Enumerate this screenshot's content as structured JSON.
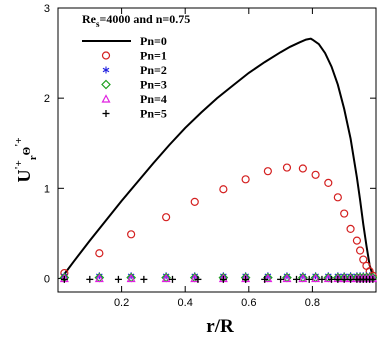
{
  "chart_data": {
    "type": "line",
    "annotation": {
      "main": "Re",
      "sub": "s",
      "rest": "=4000 and n=0.75"
    },
    "xlabel": "r/R",
    "ylabel": {
      "base": "U",
      "sup": "'+",
      "sub": "r",
      "theta": "Θ",
      "theta_sup": "'+"
    },
    "xlim": [
      0,
      1
    ],
    "ylim": [
      -0.15,
      3
    ],
    "xticks": [
      0.2,
      0.4,
      0.6,
      0.8
    ],
    "xtick_labels": [
      "0.2",
      "0.4",
      "0.6",
      "0.8"
    ],
    "yticks": [
      0,
      1,
      2,
      3
    ],
    "ytick_labels": [
      "0",
      "1",
      "2",
      "3"
    ],
    "grid": false,
    "legend_position": "top-left",
    "series": [
      {
        "name": "Pn=0",
        "style": "line",
        "color": "#000000",
        "x": [
          0.02,
          0.05,
          0.1,
          0.15,
          0.2,
          0.25,
          0.3,
          0.35,
          0.4,
          0.45,
          0.5,
          0.55,
          0.6,
          0.65,
          0.7,
          0.73,
          0.76,
          0.78,
          0.795,
          0.8,
          0.82,
          0.84,
          0.86,
          0.88,
          0.9,
          0.92,
          0.94,
          0.95,
          0.96,
          0.97,
          0.98,
          0.99,
          0.995
        ],
        "y": [
          0.05,
          0.19,
          0.42,
          0.64,
          0.86,
          1.07,
          1.28,
          1.48,
          1.67,
          1.84,
          2.0,
          2.14,
          2.28,
          2.4,
          2.51,
          2.57,
          2.62,
          2.65,
          2.66,
          2.65,
          2.6,
          2.5,
          2.35,
          2.15,
          1.88,
          1.55,
          1.12,
          0.87,
          0.6,
          0.36,
          0.15,
          0.03,
          0.0
        ]
      },
      {
        "name": "Pn=1",
        "style": "marker",
        "marker": "circle",
        "color": "#d42020",
        "x": [
          0.02,
          0.13,
          0.23,
          0.34,
          0.43,
          0.52,
          0.59,
          0.66,
          0.72,
          0.77,
          0.81,
          0.85,
          0.88,
          0.9,
          0.92,
          0.94,
          0.95,
          0.96,
          0.97,
          0.98,
          0.99
        ],
        "y": [
          0.06,
          0.28,
          0.49,
          0.68,
          0.85,
          0.99,
          1.1,
          1.19,
          1.23,
          1.22,
          1.15,
          1.06,
          0.9,
          0.72,
          0.55,
          0.42,
          0.31,
          0.21,
          0.14,
          0.08,
          0.03
        ]
      },
      {
        "name": "Pn=2",
        "style": "marker",
        "marker": "star",
        "color": "#2020e0",
        "x": [
          0.02,
          0.13,
          0.23,
          0.34,
          0.43,
          0.52,
          0.59,
          0.66,
          0.72,
          0.77,
          0.81,
          0.85,
          0.88,
          0.9,
          0.92,
          0.94,
          0.95,
          0.96,
          0.97,
          0.98,
          0.99
        ],
        "y": [
          0.03,
          0.03,
          0.03,
          0.03,
          0.03,
          0.03,
          0.03,
          0.03,
          0.03,
          0.03,
          0.03,
          0.03,
          0.03,
          0.03,
          0.03,
          0.03,
          0.03,
          0.03,
          0.03,
          0.03,
          0.02
        ]
      },
      {
        "name": "Pn=3",
        "style": "marker",
        "marker": "diamond",
        "color": "#20a020",
        "x": [
          0.02,
          0.13,
          0.23,
          0.34,
          0.43,
          0.52,
          0.59,
          0.66,
          0.72,
          0.77,
          0.81,
          0.85,
          0.88,
          0.9,
          0.92,
          0.94,
          0.95,
          0.96,
          0.97,
          0.98,
          0.99
        ],
        "y": [
          0.01,
          0.01,
          0.01,
          0.01,
          0.01,
          0.01,
          0.01,
          0.01,
          0.01,
          0.01,
          0.01,
          0.01,
          0.01,
          0.01,
          0.01,
          0.01,
          0.01,
          0.01,
          0.01,
          0.01,
          0.01
        ]
      },
      {
        "name": "Pn=4",
        "style": "marker",
        "marker": "triangle",
        "color": "#e020e0",
        "x": [
          0.02,
          0.13,
          0.23,
          0.34,
          0.43,
          0.52,
          0.59,
          0.66,
          0.72,
          0.77,
          0.81,
          0.85,
          0.88,
          0.9,
          0.92,
          0.94,
          0.95,
          0.96,
          0.97,
          0.98,
          0.99
        ],
        "y": [
          0.0,
          0.0,
          0.0,
          0.0,
          0.0,
          0.0,
          0.0,
          0.0,
          0.0,
          0.0,
          0.0,
          0.0,
          0.0,
          0.0,
          0.0,
          0.0,
          0.0,
          0.0,
          0.0,
          0.0,
          0.0
        ]
      },
      {
        "name": "Pn=5",
        "style": "marker",
        "marker": "plus",
        "color": "#000000",
        "x": [
          0.02,
          0.1,
          0.19,
          0.27,
          0.36,
          0.44,
          0.52,
          0.59,
          0.65,
          0.7,
          0.75,
          0.79,
          0.83,
          0.86,
          0.88,
          0.9,
          0.92,
          0.94,
          0.95,
          0.96,
          0.97,
          0.98,
          0.99
        ],
        "y": [
          -0.01,
          -0.01,
          -0.01,
          -0.01,
          -0.01,
          -0.01,
          -0.01,
          -0.01,
          -0.01,
          -0.01,
          -0.01,
          -0.01,
          -0.01,
          -0.01,
          -0.01,
          -0.01,
          -0.01,
          -0.01,
          -0.01,
          -0.01,
          -0.01,
          -0.01,
          -0.01
        ]
      }
    ]
  }
}
